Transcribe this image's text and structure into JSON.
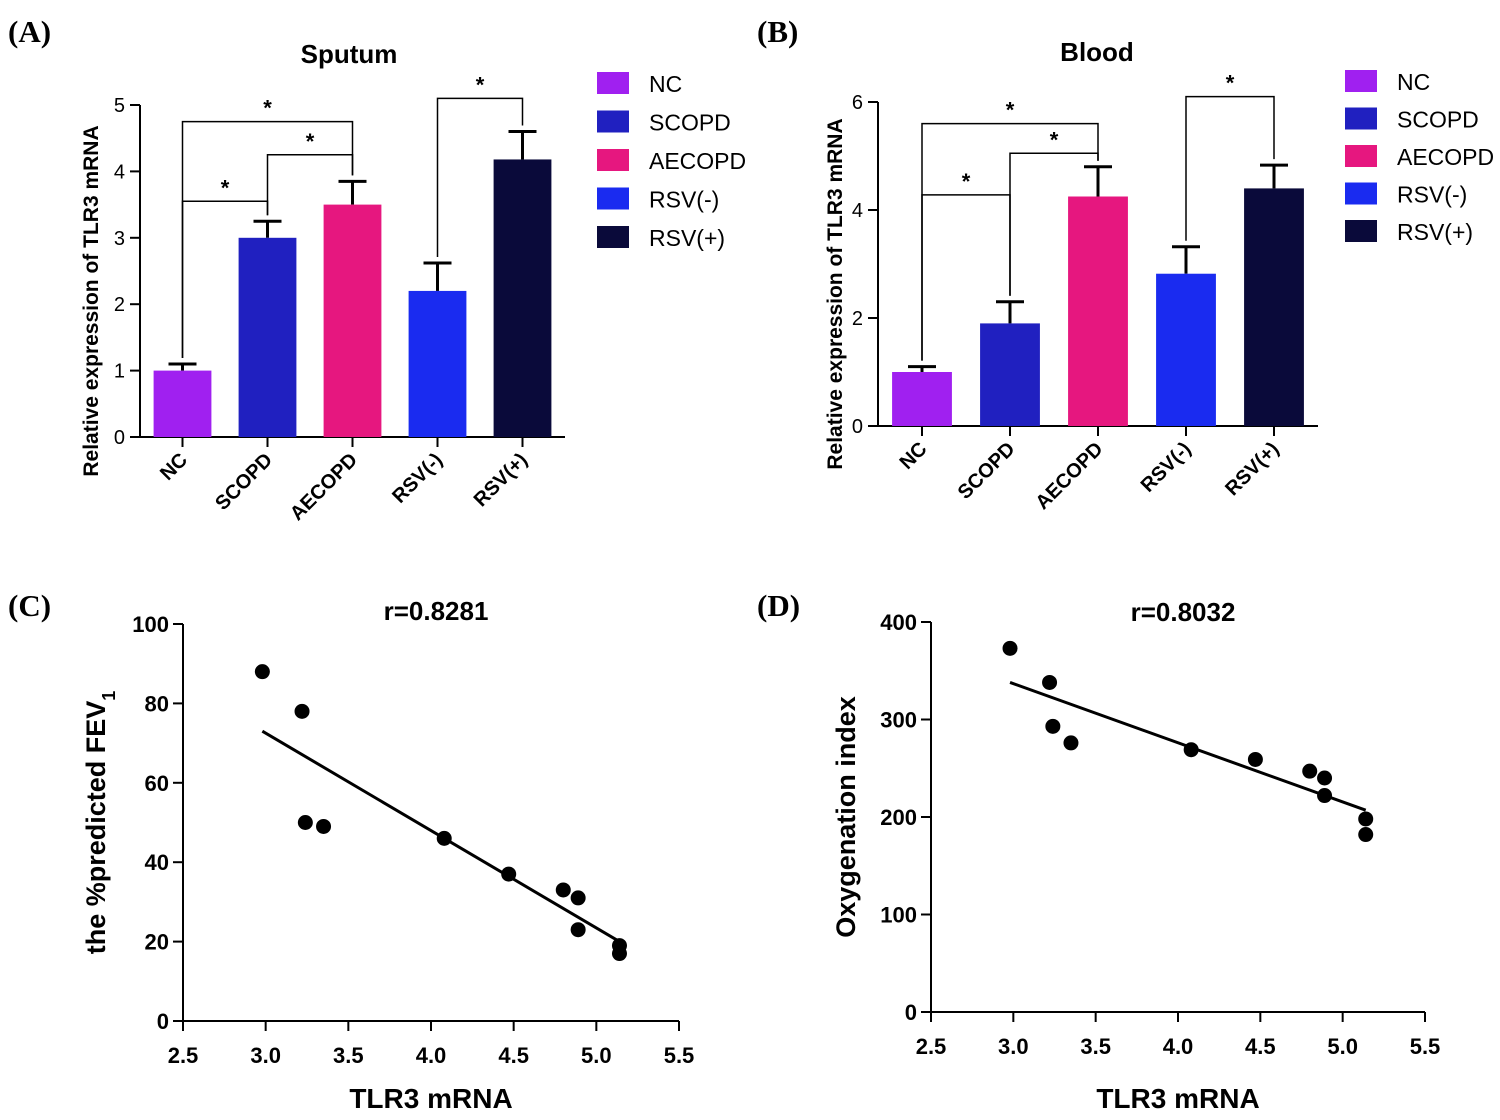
{
  "chart_data": [
    {
      "panel": "(A)",
      "type": "bar",
      "title": "Sputum",
      "ylabel": "Relative expression of TLR3 mRNA",
      "ylim": [
        0,
        5
      ],
      "yticks": [
        0,
        1,
        2,
        3,
        4,
        5
      ],
      "categories": [
        "NC",
        "SCOPD",
        "AECOPD",
        "RSV(-)",
        "RSV(+)"
      ],
      "values": [
        1.0,
        3.0,
        3.5,
        2.2,
        4.18
      ],
      "errors": [
        0.1,
        0.25,
        0.35,
        0.42,
        0.42
      ],
      "colors": [
        "#A020F0",
        "#2020C0",
        "#E6177F",
        "#1A2BF0",
        "#0A0A3A"
      ],
      "legend": [
        "NC",
        "SCOPD",
        "AECOPD",
        "RSV(-)",
        "RSV(+)"
      ],
      "significance": [
        {
          "from": 0,
          "to": 2,
          "level": 4.75,
          "label": "*"
        },
        {
          "from": 1,
          "to": 2,
          "level": 4.25,
          "label": "*"
        },
        {
          "from": 0,
          "to": 1,
          "level": 3.55,
          "label": "*"
        },
        {
          "from": 3,
          "to": 4,
          "level": 5.1,
          "label": "*"
        }
      ]
    },
    {
      "panel": "(B)",
      "type": "bar",
      "title": "Blood",
      "ylabel": "Relative expression of TLR3 mRNA",
      "ylim": [
        0,
        6
      ],
      "yticks": [
        0,
        2,
        4,
        6
      ],
      "categories": [
        "NC",
        "SCOPD",
        "AECOPD",
        "RSV(-)",
        "RSV(+)"
      ],
      "values": [
        1.0,
        1.9,
        4.25,
        2.82,
        4.4
      ],
      "errors": [
        0.1,
        0.4,
        0.55,
        0.5,
        0.43
      ],
      "colors": [
        "#A020F0",
        "#2020C0",
        "#E6177F",
        "#1A2BF0",
        "#0A0A3A"
      ],
      "legend": [
        "NC",
        "SCOPD",
        "AECOPD",
        "RSV(-)",
        "RSV(+)"
      ],
      "significance": [
        {
          "from": 0,
          "to": 2,
          "level": 5.6,
          "label": "*"
        },
        {
          "from": 1,
          "to": 2,
          "level": 5.05,
          "label": "*"
        },
        {
          "from": 0,
          "to": 1,
          "level": 4.28,
          "label": "*"
        },
        {
          "from": 3,
          "to": 4,
          "level": 6.1,
          "label": "*"
        }
      ]
    },
    {
      "panel": "(C)",
      "type": "scatter",
      "title": "r=0.8281",
      "xlabel": "TLR3 mRNA",
      "ylabel": "the %predicted FEV",
      "ylabel_sub": "1",
      "xlim": [
        2.5,
        5.5
      ],
      "ylim": [
        0,
        100
      ],
      "xticks": [
        "2.5",
        "3.0",
        "3.5",
        "4.0",
        "4.5",
        "5.0",
        "5.5"
      ],
      "yticks": [
        0,
        20,
        40,
        60,
        80,
        100
      ],
      "points": [
        [
          2.98,
          88
        ],
        [
          3.22,
          78
        ],
        [
          3.24,
          50
        ],
        [
          3.35,
          49
        ],
        [
          4.08,
          46
        ],
        [
          4.47,
          37
        ],
        [
          4.8,
          33
        ],
        [
          4.89,
          31
        ],
        [
          4.89,
          23
        ],
        [
          5.14,
          19
        ],
        [
          5.14,
          17
        ]
      ],
      "fit": {
        "x0": 2.98,
        "y0": 73,
        "x1": 5.14,
        "y1": 20
      }
    },
    {
      "panel": "(D)",
      "type": "scatter",
      "title": "r=0.8032",
      "xlabel": "TLR3 mRNA",
      "ylabel": "Oxygenation index",
      "xlim": [
        2.5,
        5.5
      ],
      "ylim": [
        0,
        400
      ],
      "xticks": [
        "2.5",
        "3.0",
        "3.5",
        "4.0",
        "4.5",
        "5.0",
        "5.5"
      ],
      "yticks": [
        0,
        100,
        200,
        300,
        400
      ],
      "points": [
        [
          2.98,
          373
        ],
        [
          3.22,
          338
        ],
        [
          3.24,
          293
        ],
        [
          3.35,
          276
        ],
        [
          4.08,
          269
        ],
        [
          4.47,
          259
        ],
        [
          4.8,
          247
        ],
        [
          4.89,
          240
        ],
        [
          4.89,
          222
        ],
        [
          5.14,
          198
        ],
        [
          5.14,
          182
        ]
      ],
      "fit": {
        "x0": 2.98,
        "y0": 338,
        "x1": 5.14,
        "y1": 207
      }
    }
  ]
}
